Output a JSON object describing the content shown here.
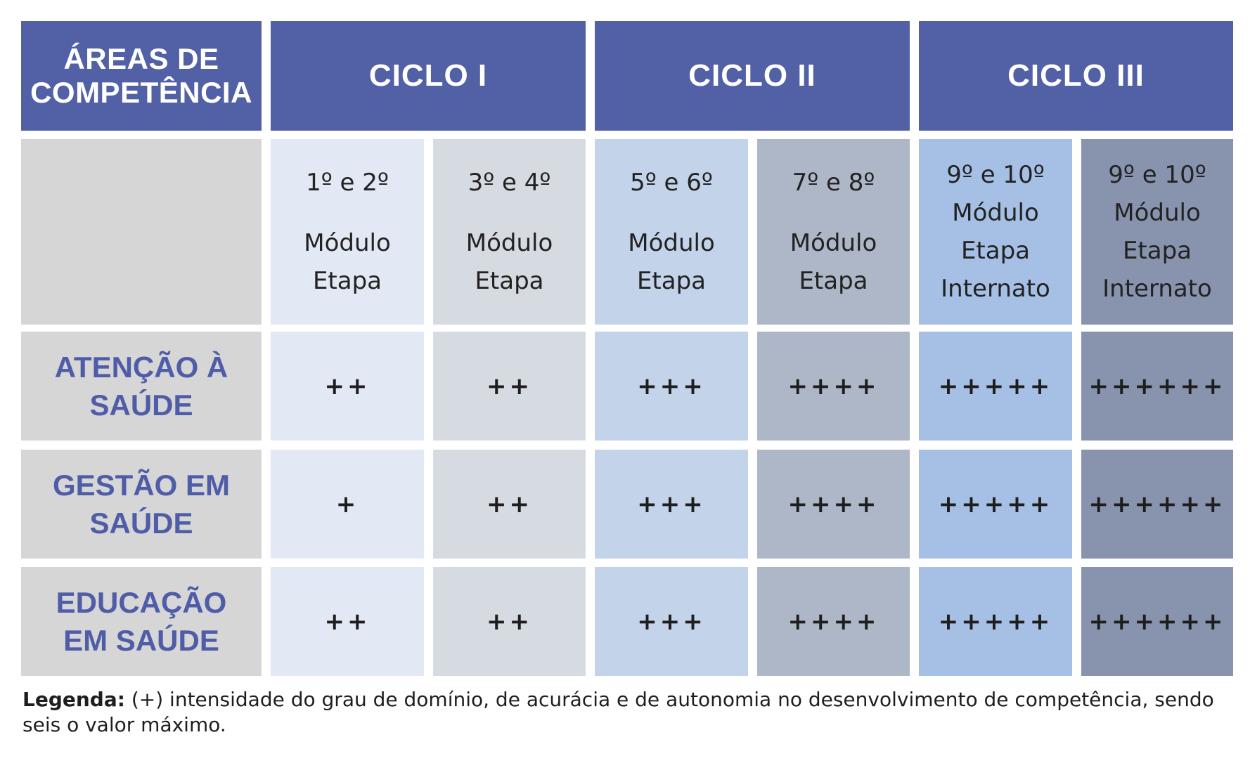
{
  "header": {
    "areas_line1": "ÁREAS DE",
    "areas_line2": "COMPETÊNCIA",
    "cycles": [
      "CICLO I",
      "CICLO II",
      "CICLO III"
    ]
  },
  "columns": [
    {
      "period": "1º e 2º",
      "lines": [
        "Módulo",
        "Etapa"
      ]
    },
    {
      "period": "3º e 4º",
      "lines": [
        "Módulo",
        "Etapa"
      ]
    },
    {
      "period": "5º e 6º",
      "lines": [
        "Módulo",
        "Etapa"
      ]
    },
    {
      "period": "7º e 8º",
      "lines": [
        "Módulo",
        "Etapa"
      ]
    },
    {
      "period": "9º e 10º",
      "lines": [
        "Módulo",
        "Etapa",
        "Internato"
      ]
    },
    {
      "period": "9º e 10º",
      "lines": [
        "Módulo",
        "Etapa",
        "Internato"
      ]
    }
  ],
  "rows": [
    {
      "line1": "ATENÇÃO À",
      "line2": "SAÚDE",
      "values": [
        "++",
        "++",
        "+++",
        "++++",
        "+++++",
        "++++++"
      ]
    },
    {
      "line1": "GESTÃO EM",
      "line2": "SAÚDE",
      "values": [
        "+",
        "++",
        "+++",
        "++++",
        "+++++",
        "++++++"
      ]
    },
    {
      "line1": "EDUCAÇÃO",
      "line2": "EM SAÚDE",
      "values": [
        "++",
        "++",
        "+++",
        "++++",
        "+++++",
        "++++++"
      ]
    }
  ],
  "legend": {
    "label": "Legenda:",
    "text": " (+) intensidade do grau de domínio, de acurácia e de autonomia no desenvolvimento de competência, sendo seis o valor máximo."
  },
  "colors": {
    "header": "#5260a6",
    "area_bg": "#d6d6d6",
    "area_text": "#4f5ca8",
    "col_bg": [
      "#e3e9f4",
      "#d6dae1",
      "#c2d3ea",
      "#aeb7c8",
      "#a5c0e4",
      "#8893ae"
    ]
  }
}
